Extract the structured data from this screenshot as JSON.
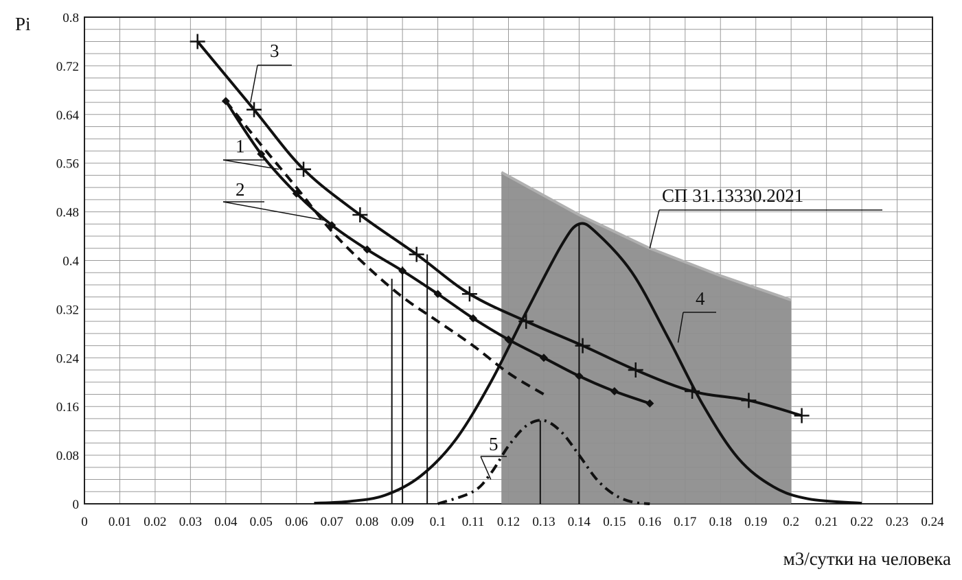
{
  "chart_data": {
    "type": "line",
    "ylabel": "Pi",
    "xlabel": "м3/сутки на человека",
    "xlim": [
      0,
      0.24
    ],
    "ylim": [
      0,
      0.8
    ],
    "x_ticks": [
      "0",
      "0.01",
      "0.02",
      "0.03",
      "0.04",
      "0.05",
      "0.06",
      "0.07",
      "0.08",
      "0.09",
      "0.1",
      "0.11",
      "0.12",
      "0.13",
      "0.14",
      "0.15",
      "0.16",
      "0.17",
      "0.18",
      "0.19",
      "0.2",
      "0.21",
      "0.22",
      "0.23",
      "0.24"
    ],
    "y_ticks": [
      "0",
      "0.08",
      "0.16",
      "0.24",
      "0.32",
      "0.4",
      "0.48",
      "0.56",
      "0.64",
      "0.72",
      "0.8"
    ],
    "grid": true,
    "series": [
      {
        "name": "1",
        "style": "solid",
        "marker": "diamond",
        "x": [
          0.04,
          0.05,
          0.06,
          0.07,
          0.08,
          0.09,
          0.1,
          0.11,
          0.12,
          0.13,
          0.14,
          0.15,
          0.16
        ],
        "y": [
          0.662,
          0.575,
          0.51,
          0.458,
          0.418,
          0.383,
          0.345,
          0.305,
          0.27,
          0.24,
          0.21,
          0.185,
          0.165
        ]
      },
      {
        "name": "2",
        "style": "dashed",
        "marker": "none",
        "x": [
          0.04,
          0.05,
          0.06,
          0.07,
          0.08,
          0.09,
          0.1,
          0.11,
          0.12,
          0.13
        ],
        "y": [
          0.662,
          0.59,
          0.52,
          0.448,
          0.39,
          0.34,
          0.3,
          0.26,
          0.215,
          0.18
        ]
      },
      {
        "name": "3",
        "style": "solid",
        "marker": "plus",
        "x": [
          0.032,
          0.048,
          0.062,
          0.078,
          0.094,
          0.109,
          0.125,
          0.141,
          0.156,
          0.172,
          0.188,
          0.203
        ],
        "y": [
          0.76,
          0.648,
          0.55,
          0.475,
          0.41,
          0.345,
          0.3,
          0.26,
          0.22,
          0.185,
          0.17,
          0.145
        ]
      },
      {
        "name": "4",
        "style": "solid",
        "marker": "none",
        "x": [
          0.065,
          0.075,
          0.085,
          0.095,
          0.105,
          0.115,
          0.125,
          0.135,
          0.14,
          0.145,
          0.155,
          0.165,
          0.175,
          0.185,
          0.195,
          0.205,
          0.22
        ],
        "y": [
          0.001,
          0.004,
          0.014,
          0.045,
          0.105,
          0.2,
          0.315,
          0.425,
          0.46,
          0.445,
          0.38,
          0.275,
          0.163,
          0.075,
          0.028,
          0.008,
          0.001
        ]
      },
      {
        "name": "5",
        "style": "dashdot",
        "marker": "none",
        "x": [
          0.1,
          0.11,
          0.115,
          0.12,
          0.125,
          0.13,
          0.135,
          0.14,
          0.145,
          0.15,
          0.155,
          0.16
        ],
        "y": [
          0.0,
          0.02,
          0.05,
          0.095,
          0.128,
          0.137,
          0.118,
          0.08,
          0.04,
          0.015,
          0.003,
          0.0
        ]
      }
    ],
    "shaded_region": {
      "label": "СП 31.13330.2021",
      "x": [
        0.118,
        0.14,
        0.16,
        0.18,
        0.2
      ],
      "top": [
        0.545,
        0.475,
        0.42,
        0.375,
        0.335
      ]
    },
    "vertical_lines": [
      {
        "x": 0.087,
        "y": 0.37
      },
      {
        "x": 0.09,
        "y": 0.39
      },
      {
        "x": 0.097,
        "y": 0.41
      },
      {
        "x": 0.129,
        "y": 0.137
      },
      {
        "x": 0.14,
        "y": 0.46
      }
    ],
    "callouts": [
      "1",
      "2",
      "3",
      "4",
      "5",
      "СП 31.13330.2021"
    ]
  }
}
